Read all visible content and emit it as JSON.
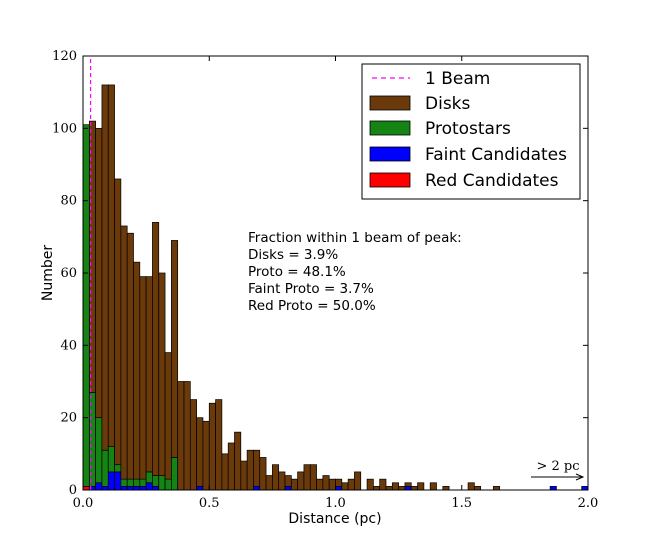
{
  "chart_data": {
    "type": "bar",
    "xlabel": "Distance (pc)",
    "ylabel": "Number",
    "xlim": [
      0.0,
      2.0
    ],
    "ylim": [
      0,
      120
    ],
    "xticks": [
      "0.0",
      "0.5",
      "1.0",
      "1.5",
      "2.0"
    ],
    "yticks": [
      "0",
      "20",
      "40",
      "60",
      "80",
      "100",
      "120"
    ],
    "x_tick_values": [
      0.0,
      0.5,
      1.0,
      1.5,
      2.0
    ],
    "y_tick_values": [
      0,
      20,
      40,
      60,
      80,
      100,
      120
    ],
    "bin_width": 0.025,
    "beam_x": 0.03,
    "legend_position": "top-right",
    "legend": [
      {
        "label": "1 Beam",
        "style": "dashed-line",
        "color": "#ff00ff"
      },
      {
        "label": "Disks",
        "style": "patch",
        "color": "#6b3a0b"
      },
      {
        "label": "Protostars",
        "style": "patch",
        "color": "#158415"
      },
      {
        "label": "Faint Candidates",
        "style": "patch",
        "color": "#0000ff"
      },
      {
        "label": "Red Candidates",
        "style": "patch",
        "color": "#ff0000"
      }
    ],
    "series": [
      {
        "name": "Disks",
        "color": "#6b3a0b",
        "values": [
          0,
          75,
          80,
          101,
          100,
          79,
          70,
          68,
          60,
          56,
          54,
          70,
          56,
          35,
          60,
          30,
          30,
          25,
          19,
          19,
          24,
          25,
          10,
          13,
          16,
          8,
          11,
          10,
          9,
          4,
          7,
          5,
          3,
          3,
          5,
          7,
          7,
          3,
          4,
          3,
          2,
          2,
          3,
          5,
          0,
          3,
          1,
          3,
          1,
          2,
          1,
          1,
          1,
          2,
          0,
          2,
          0,
          1,
          0,
          0,
          0,
          2,
          1,
          0,
          0,
          1,
          0,
          0,
          0,
          0,
          0,
          0,
          0,
          0,
          0,
          0,
          0,
          0,
          0,
          0
        ]
      },
      {
        "name": "Protostars",
        "color": "#158415",
        "values": [
          100,
          26,
          18,
          10,
          7,
          2,
          2,
          2,
          2,
          2,
          3,
          3,
          4,
          3,
          9,
          0,
          0,
          0,
          0,
          0,
          0,
          0,
          0,
          0,
          0,
          0,
          0,
          0,
          0,
          0,
          0,
          0,
          0,
          0,
          0,
          0,
          0,
          0,
          0,
          0,
          0,
          0,
          0,
          0,
          0,
          0,
          0,
          0,
          0,
          0,
          0,
          0,
          0,
          0,
          0,
          0,
          0,
          0,
          0,
          0,
          0,
          0,
          0,
          0,
          0,
          0,
          0,
          0,
          0,
          0,
          0,
          0,
          0,
          0,
          0,
          0,
          0,
          0,
          0,
          0
        ]
      },
      {
        "name": "Faint Candidates",
        "color": "#0000ff",
        "values": [
          0,
          1,
          2,
          1,
          5,
          5,
          1,
          1,
          1,
          1,
          2,
          1,
          0,
          0,
          0,
          0,
          0,
          0,
          1,
          0,
          0,
          0,
          0,
          0,
          0,
          0,
          0,
          1,
          0,
          0,
          0,
          0,
          1,
          0,
          0,
          0,
          0,
          0,
          0,
          0,
          1,
          0,
          0,
          0,
          0,
          0,
          0,
          0,
          0,
          0,
          0,
          1,
          0,
          0,
          0,
          0,
          0,
          0,
          0,
          0,
          0,
          0,
          0,
          0,
          0,
          0,
          0,
          0,
          0,
          0,
          0,
          0,
          0,
          0,
          1,
          0,
          0,
          0,
          0,
          1
        ]
      },
      {
        "name": "Red Candidates",
        "color": "#ff0000",
        "values": [
          1,
          0,
          0,
          0,
          0,
          0,
          0,
          0,
          0,
          0,
          0,
          0,
          0,
          0,
          0,
          0,
          0,
          0,
          0,
          0,
          0,
          0,
          0,
          0,
          0,
          0,
          0,
          0,
          0,
          0,
          0,
          0,
          0,
          0,
          0,
          0,
          0,
          0,
          0,
          0,
          0,
          0,
          0,
          0,
          0,
          0,
          0,
          0,
          0,
          0,
          0,
          0,
          0,
          0,
          0,
          0,
          0,
          0,
          0,
          0,
          0,
          0,
          0,
          0,
          0,
          0,
          0,
          0,
          0,
          0,
          0,
          0,
          0,
          0,
          0,
          0,
          0,
          0,
          0,
          0
        ]
      }
    ],
    "annotation_lines": [
      "Fraction within 1 beam of peak:",
      "Disks = 3.9%",
      "Proto = 48.1%",
      "Faint Proto = 3.7%",
      "Red Proto = 50.0%"
    ],
    "arrow_label": "> 2 pc"
  }
}
